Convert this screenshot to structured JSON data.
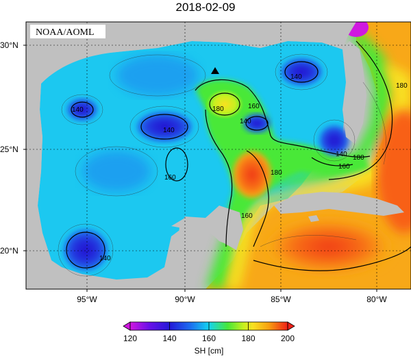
{
  "map": {
    "title": "2018-02-09",
    "credit": "NOAA/AOML",
    "lat_ticks": [
      "30°N",
      "25°N",
      "20°N"
    ],
    "lon_ticks": [
      "95°W",
      "90°W",
      "85°W",
      "80°W"
    ],
    "contour_labels": [
      "140",
      "140",
      "140",
      "140",
      "160",
      "160",
      "160",
      "180",
      "180",
      "180",
      "180",
      "140",
      "160",
      "140"
    ],
    "colorbar": {
      "ticks": [
        "120",
        "140",
        "160",
        "180",
        "200"
      ],
      "label": "SH [cm]"
    },
    "colors": {
      "land": "#c0c0c0",
      "deep_blue": "#2418d8",
      "cyan": "#14d4f0",
      "green": "#48e838",
      "yellow": "#f8e020",
      "red": "#f04018",
      "magenta": "#d018e0"
    }
  }
}
